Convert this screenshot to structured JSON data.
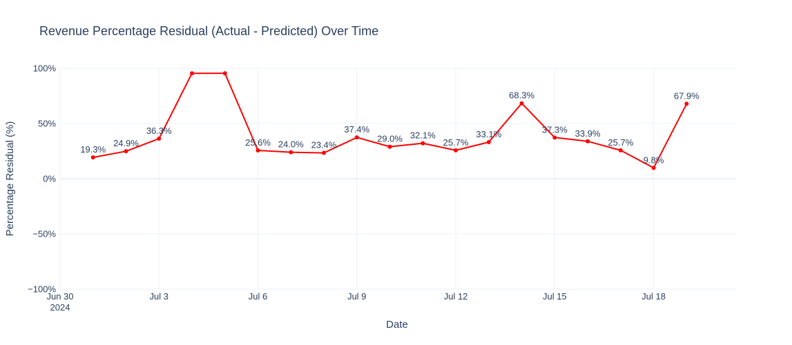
{
  "chart_data": {
    "type": "line",
    "title": "Revenue Percentage Residual (Actual - Predicted) Over Time",
    "xlabel": "Date",
    "ylabel": "Percentage Residual (%)",
    "ylim": [
      -100,
      100
    ],
    "xlim": [
      "2024-06-30",
      "2024-07-20T12:00"
    ],
    "line_color": "#ff0000",
    "grid": true,
    "y_ticks": [
      {
        "value": 100,
        "label": "100%"
      },
      {
        "value": 50,
        "label": "50%"
      },
      {
        "value": 0,
        "label": "0%"
      },
      {
        "value": -50,
        "label": "−50%"
      },
      {
        "value": -100,
        "label": "−100%"
      }
    ],
    "x_ticks": [
      {
        "date": "2024-06-30",
        "label": "Jun 30",
        "sublabel": "2024"
      },
      {
        "date": "2024-07-03",
        "label": "Jul 3",
        "sublabel": ""
      },
      {
        "date": "2024-07-06",
        "label": "Jul 6",
        "sublabel": ""
      },
      {
        "date": "2024-07-09",
        "label": "Jul 9",
        "sublabel": ""
      },
      {
        "date": "2024-07-12",
        "label": "Jul 12",
        "sublabel": ""
      },
      {
        "date": "2024-07-15",
        "label": "Jul 15",
        "sublabel": ""
      },
      {
        "date": "2024-07-18",
        "label": "Jul 18",
        "sublabel": ""
      }
    ],
    "points": [
      {
        "x": "2024-07-01",
        "y": 19.3,
        "label": "19.3%"
      },
      {
        "x": "2024-07-02",
        "y": 24.9,
        "label": "24.9%"
      },
      {
        "x": "2024-07-03",
        "y": 36.3,
        "label": "36.3%"
      },
      {
        "x": "2024-07-04",
        "y": 95.5,
        "label": ""
      },
      {
        "x": "2024-07-05",
        "y": 95.5,
        "label": ""
      },
      {
        "x": "2024-07-06",
        "y": 25.6,
        "label": "25.6%"
      },
      {
        "x": "2024-07-07",
        "y": 24.0,
        "label": "24.0%"
      },
      {
        "x": "2024-07-08",
        "y": 23.4,
        "label": "23.4%"
      },
      {
        "x": "2024-07-09",
        "y": 37.4,
        "label": "37.4%"
      },
      {
        "x": "2024-07-10",
        "y": 29.0,
        "label": "29.0%"
      },
      {
        "x": "2024-07-11",
        "y": 32.1,
        "label": "32.1%"
      },
      {
        "x": "2024-07-12",
        "y": 25.7,
        "label": "25.7%"
      },
      {
        "x": "2024-07-13",
        "y": 33.1,
        "label": "33.1%"
      },
      {
        "x": "2024-07-14",
        "y": 68.3,
        "label": "68.3%"
      },
      {
        "x": "2024-07-15",
        "y": 37.3,
        "label": "37.3%"
      },
      {
        "x": "2024-07-16",
        "y": 33.9,
        "label": "33.9%"
      },
      {
        "x": "2024-07-17",
        "y": 25.7,
        "label": "25.7%"
      },
      {
        "x": "2024-07-18",
        "y": 9.8,
        "label": "9.8%"
      },
      {
        "x": "2024-07-19",
        "y": 67.9,
        "label": "67.9%"
      }
    ]
  }
}
